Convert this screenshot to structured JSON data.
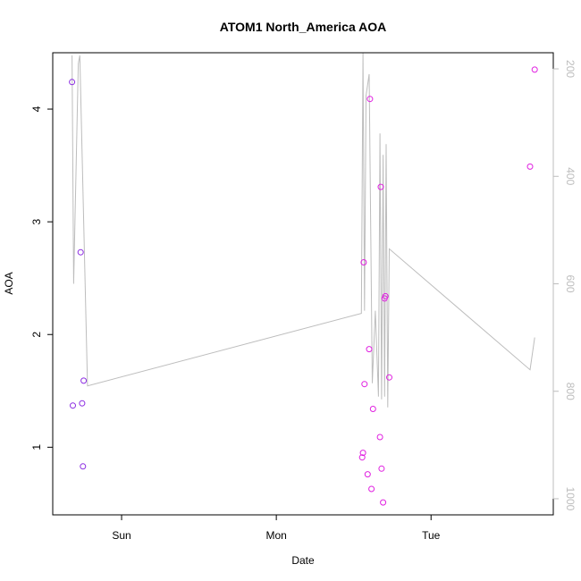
{
  "chart_data": {
    "type": "scatter",
    "title": "ATOM1 North_America AOA",
    "xlabel": "Date",
    "ylabel": "AOA",
    "ylabel_right": "",
    "x_ticks": [
      {
        "label": "Sun",
        "value": 1
      },
      {
        "label": "Mon",
        "value": 2
      },
      {
        "label": "Tue",
        "value": 3
      }
    ],
    "xlim": [
      0.555,
      3.79
    ],
    "ylim": [
      0.4,
      4.5
    ],
    "y_ticks": [
      "1",
      "2",
      "3",
      "4"
    ],
    "y2lim": [
      1030,
      170
    ],
    "y2_ticks": [
      "200",
      "400",
      "600",
      "800",
      "1000"
    ],
    "grid": false,
    "colors": {
      "axis": "#000000",
      "secondary_axis": "#bdbdbd",
      "line": "#bdbdbd",
      "points_early": "#8b2be2",
      "points_late": "#e020e0"
    },
    "series": [
      {
        "marker": "circle-open",
        "color_key": "points_early",
        "x": [
          0.68,
          0.685,
          0.735,
          0.745,
          0.75,
          0.755
        ],
        "y": [
          4.24,
          1.37,
          2.73,
          1.39,
          0.83,
          1.59
        ]
      },
      {
        "marker": "circle-open",
        "color_key": "points_late",
        "x": [
          2.555,
          2.56,
          2.565,
          2.57,
          2.59,
          2.6,
          2.605,
          2.615,
          2.625,
          2.67,
          2.675,
          2.68,
          2.69,
          2.7,
          2.705,
          2.73,
          3.64,
          3.67
        ],
        "y": [
          0.91,
          0.95,
          2.64,
          1.56,
          0.76,
          1.87,
          4.09,
          0.63,
          1.34,
          1.09,
          3.31,
          0.81,
          0.51,
          2.32,
          2.34,
          1.62,
          3.49,
          4.35
        ]
      }
    ],
    "line_series": {
      "axis": "right",
      "color_key": "line",
      "x": [
        0.68,
        0.69,
        0.72,
        0.73,
        0.78,
        2.55,
        2.56,
        2.57,
        2.58,
        2.6,
        2.62,
        2.64,
        2.66,
        2.67,
        2.68,
        2.69,
        2.7,
        2.71,
        2.72,
        2.73,
        3.64,
        3.67
      ],
      "y": [
        175,
        600,
        190,
        175,
        790,
        655,
        170,
        650,
        250,
        210,
        785,
        650,
        810,
        320,
        815,
        360,
        810,
        340,
        830,
        535,
        760,
        700
      ]
    }
  }
}
